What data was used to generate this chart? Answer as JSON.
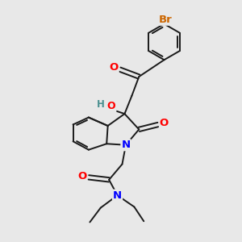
{
  "background_color": "#e8e8e8",
  "bond_color": "#1a1a1a",
  "atom_colors": {
    "O": "#ff0000",
    "N": "#0000ff",
    "Br": "#cc6600",
    "HO": "#4a9090",
    "C": "#1a1a1a"
  },
  "font_size": 8.5,
  "fig_width": 3.0,
  "fig_height": 3.0,
  "dpi": 100
}
